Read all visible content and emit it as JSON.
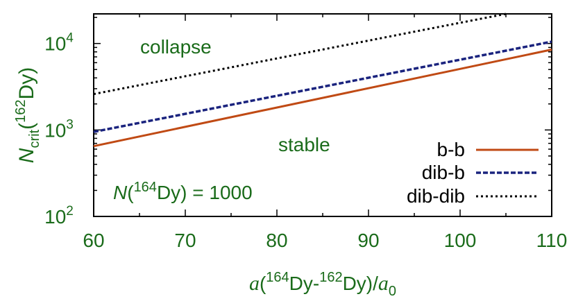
{
  "chart_data": {
    "type": "line",
    "xlabel": {
      "prefix": "a",
      "open": "(",
      "iso1": "164",
      "el1": "Dy-",
      "iso2": "162",
      "el2": "Dy)/",
      "unit": "a",
      "unit_sub": "0"
    },
    "ylabel": {
      "main": "N",
      "sub": "crit",
      "open": "(",
      "iso": "162",
      "el": "Dy)"
    },
    "xlim": [
      60,
      110
    ],
    "ylim": [
      100,
      22000
    ],
    "yscale": "log",
    "xticks": [
      "60",
      "70",
      "80",
      "90",
      "100",
      "110"
    ],
    "yticks": [
      {
        "base": "10",
        "exp": "2",
        "value": 100
      },
      {
        "base": "10",
        "exp": "3",
        "value": 1000
      },
      {
        "base": "10",
        "exp": "4",
        "value": 10000
      }
    ],
    "annotations": {
      "collapse": "collapse",
      "stable": "stable",
      "condition": {
        "prefix": "N",
        "open": "(",
        "iso": "164",
        "rest": "Dy) = 1000"
      }
    },
    "series": [
      {
        "name": "b-b",
        "color": "#c04a14",
        "style": "solid",
        "x": [
          60,
          110
        ],
        "y": [
          650,
          8500
        ]
      },
      {
        "name": "dib-b",
        "color": "#1a237e",
        "style": "dashed",
        "x": [
          60,
          110
        ],
        "y": [
          950,
          10500
        ]
      },
      {
        "name": "dib-dib",
        "color": "#000000",
        "style": "dotted",
        "x": [
          60,
          105
        ],
        "y": [
          2600,
          22000
        ]
      }
    ],
    "legend_position": "bottom-right",
    "grid": false
  }
}
